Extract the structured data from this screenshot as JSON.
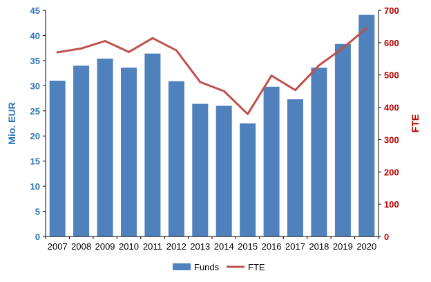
{
  "chart_data": {
    "type": "bar",
    "categories": [
      "2007",
      "2008",
      "2009",
      "2010",
      "2011",
      "2012",
      "2013",
      "2014",
      "2015",
      "2016",
      "2017",
      "2018",
      "2019",
      "2020"
    ],
    "series": [
      {
        "name": "Funds",
        "type": "bar",
        "axis": "left",
        "color": "#4f81bd",
        "values": [
          31.0,
          34.0,
          35.4,
          33.6,
          36.4,
          30.9,
          26.4,
          26.0,
          22.5,
          29.8,
          27.3,
          33.6,
          38.3,
          44.1
        ]
      },
      {
        "name": "FTE",
        "type": "line",
        "axis": "right",
        "color": "#c0504d",
        "values": [
          570,
          582,
          605,
          571,
          614,
          576,
          478,
          450,
          379,
          498,
          453,
          530,
          583,
          645
        ]
      }
    ],
    "ylabel": "Mio. EUR",
    "ylim": [
      0,
      45
    ],
    "yticks": [
      "0",
      "5",
      "10",
      "15",
      "20",
      "25",
      "30",
      "35",
      "40",
      "45"
    ],
    "y2label": "FTE",
    "y2lim": [
      0,
      700
    ],
    "y2ticks": [
      "0",
      "100",
      "200",
      "300",
      "400",
      "500",
      "600",
      "700"
    ],
    "legend_position": "bottom",
    "grid": false
  }
}
